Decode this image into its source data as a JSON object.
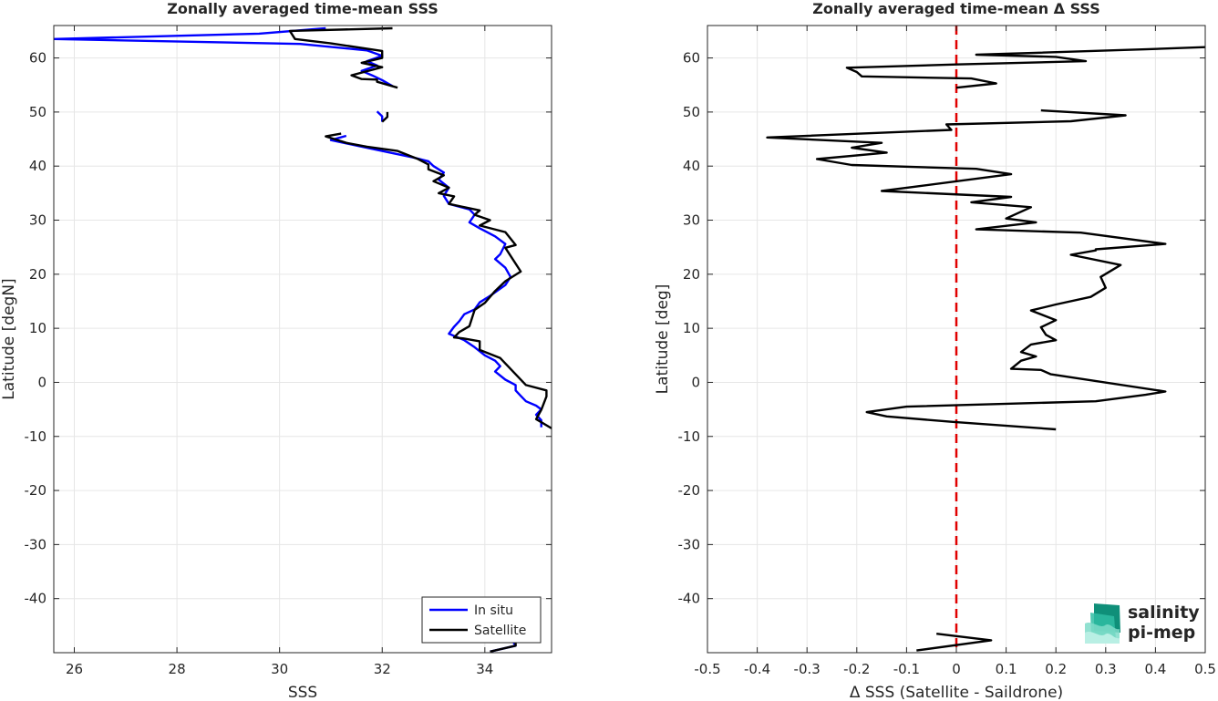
{
  "chart_data": [
    {
      "type": "line",
      "title": "Zonally averaged time-mean SSS",
      "xlabel": "SSS",
      "ylabel": "Latitude [degN]",
      "xlim": [
        25.6,
        35.3
      ],
      "ylim": [
        -50,
        66
      ],
      "x_ticks": [
        26,
        28,
        30,
        32,
        34
      ],
      "y_ticks": [
        -40,
        -30,
        -20,
        -10,
        0,
        10,
        20,
        30,
        40,
        50,
        60
      ],
      "grid": true,
      "legend": {
        "placement": "bottom-right",
        "entries": [
          "In situ",
          "Satellite"
        ]
      },
      "series": [
        {
          "name": "In situ",
          "color": "#0000ff",
          "segments": [
            [
              [
                30.9,
                65.5
              ],
              [
                29.6,
                64.5
              ],
              [
                25.6,
                63.5
              ],
              [
                30.4,
                62.6
              ],
              [
                31.7,
                61.4
              ],
              [
                32.0,
                60.4
              ],
              [
                31.7,
                59.4
              ],
              [
                31.9,
                58.6
              ],
              [
                31.6,
                57.6
              ],
              [
                31.8,
                56.8
              ],
              [
                32.0,
                55.9
              ],
              [
                32.2,
                54.8
              ]
            ],
            [
              [
                31.9,
                50.1
              ],
              [
                32.0,
                49.2
              ],
              [
                32.0,
                48.2
              ]
            ],
            [
              [
                31.3,
                45.6
              ],
              [
                31.0,
                44.8
              ],
              [
                31.5,
                43.8
              ],
              [
                32.1,
                42.6
              ],
              [
                32.6,
                41.6
              ],
              [
                32.9,
                40.9
              ],
              [
                33.0,
                40.0
              ],
              [
                33.2,
                38.8
              ],
              [
                33.1,
                37.5
              ],
              [
                33.3,
                36.0
              ],
              [
                33.2,
                34.5
              ],
              [
                33.3,
                33.0
              ],
              [
                33.7,
                32.0
              ],
              [
                33.8,
                31.0
              ],
              [
                33.7,
                29.6
              ],
              [
                33.9,
                28.5
              ],
              [
                34.2,
                27.0
              ],
              [
                34.4,
                25.6
              ],
              [
                34.3,
                23.7
              ],
              [
                34.2,
                22.8
              ],
              [
                34.4,
                21.2
              ],
              [
                34.5,
                19.5
              ],
              [
                34.4,
                18.0
              ],
              [
                34.1,
                16.0
              ],
              [
                33.9,
                14.8
              ],
              [
                33.8,
                13.5
              ],
              [
                33.6,
                12.6
              ],
              [
                33.5,
                11.3
              ],
              [
                33.4,
                10.3
              ],
              [
                33.3,
                9.0
              ],
              [
                33.6,
                7.8
              ],
              [
                33.8,
                6.5
              ],
              [
                34.0,
                5.0
              ],
              [
                34.2,
                4.0
              ],
              [
                34.3,
                3.0
              ],
              [
                34.2,
                2.0
              ],
              [
                34.4,
                0.5
              ],
              [
                34.6,
                -0.5
              ],
              [
                34.6,
                -1.5
              ],
              [
                34.7,
                -2.5
              ],
              [
                34.8,
                -3.5
              ],
              [
                35.0,
                -4.3
              ],
              [
                35.1,
                -5.0
              ],
              [
                35.0,
                -6.0
              ],
              [
                35.1,
                -7.0
              ],
              [
                35.1,
                -8.3
              ]
            ],
            [
              [
                34.5,
                -47.2
              ],
              [
                34.6,
                -48.7
              ],
              [
                34.1,
                -49.8
              ]
            ]
          ]
        },
        {
          "name": "Satellite",
          "color": "#000000",
          "segments": [
            [
              [
                32.2,
                65.5
              ],
              [
                30.2,
                65.0
              ],
              [
                30.3,
                63.5
              ],
              [
                31.0,
                62.7
              ],
              [
                32.0,
                61.3
              ],
              [
                32.0,
                60.0
              ],
              [
                31.6,
                59.1
              ],
              [
                32.0,
                58.3
              ],
              [
                31.4,
                56.8
              ],
              [
                31.6,
                56.1
              ],
              [
                31.9,
                56.0
              ],
              [
                31.9,
                55.6
              ],
              [
                32.3,
                54.5
              ]
            ],
            [
              [
                32.1,
                50.0
              ],
              [
                32.1,
                49.1
              ],
              [
                32.0,
                48.2
              ]
            ],
            [
              [
                31.2,
                46.0
              ],
              [
                30.9,
                45.5
              ],
              [
                31.3,
                44.3
              ],
              [
                31.7,
                43.6
              ],
              [
                32.3,
                42.8
              ],
              [
                32.7,
                41.3
              ],
              [
                32.9,
                40.3
              ],
              [
                32.9,
                39.4
              ],
              [
                33.2,
                38.3
              ],
              [
                33.0,
                37.2
              ],
              [
                33.3,
                36.0
              ],
              [
                33.1,
                35.0
              ],
              [
                33.4,
                34.4
              ],
              [
                33.3,
                33.0
              ],
              [
                33.9,
                31.8
              ],
              [
                33.8,
                31.0
              ],
              [
                34.1,
                30.0
              ],
              [
                33.9,
                29.0
              ],
              [
                34.4,
                27.8
              ],
              [
                34.6,
                25.4
              ],
              [
                34.4,
                24.9
              ],
              [
                34.7,
                20.5
              ],
              [
                34.4,
                18.7
              ],
              [
                34.2,
                16.9
              ],
              [
                34.0,
                14.7
              ],
              [
                33.8,
                13.4
              ],
              [
                33.7,
                10.4
              ],
              [
                33.5,
                9.3
              ],
              [
                33.4,
                8.3
              ],
              [
                33.6,
                8.1
              ],
              [
                33.9,
                7.6
              ],
              [
                33.9,
                6.0
              ],
              [
                34.3,
                4.5
              ],
              [
                34.4,
                3.5
              ],
              [
                34.8,
                -0.5
              ],
              [
                35.2,
                -1.5
              ],
              [
                35.2,
                -2.6
              ],
              [
                35.1,
                -5.1
              ],
              [
                35.0,
                -6.8
              ],
              [
                35.3,
                -8.5
              ]
            ],
            [
              [
                34.6,
                -47.4
              ],
              [
                34.6,
                -48.7
              ],
              [
                34.1,
                -49.8
              ]
            ]
          ]
        }
      ]
    },
    {
      "type": "line",
      "title": "Zonally averaged time-mean Δ SSS",
      "xlabel": "Δ SSS (Satellite - Saildrone)",
      "ylabel": "Latitude [deg]",
      "xlim": [
        -0.5,
        0.5
      ],
      "ylim": [
        -50,
        66
      ],
      "x_ticks": [
        -0.5,
        -0.4,
        -0.3,
        -0.2,
        -0.1,
        0,
        0.1,
        0.2,
        0.3,
        0.4,
        0.5
      ],
      "y_ticks": [
        -40,
        -30,
        -20,
        -10,
        0,
        10,
        20,
        30,
        40,
        50,
        60
      ],
      "grid": true,
      "reference_line": {
        "x": 0,
        "color": "#e00000",
        "style": "dashed"
      },
      "series": [
        {
          "color": "#000000",
          "segments": [
            [
              [
                0.5,
                62.0
              ],
              [
                0.38,
                61.6
              ],
              [
                0.04,
                60.6
              ],
              [
                0.2,
                60.2
              ],
              [
                0.26,
                59.4
              ],
              [
                0.0,
                58.8
              ],
              [
                -0.22,
                58.2
              ],
              [
                -0.2,
                57.4
              ],
              [
                -0.19,
                56.6
              ],
              [
                0.03,
                56.2
              ],
              [
                0.08,
                55.3
              ],
              [
                0.0,
                54.5
              ]
            ],
            [
              [
                0.17,
                50.3
              ],
              [
                0.34,
                49.4
              ],
              [
                0.23,
                48.3
              ],
              [
                -0.02,
                47.7
              ],
              [
                -0.01,
                46.7
              ],
              [
                -0.38,
                45.3
              ],
              [
                -0.15,
                44.3
              ],
              [
                -0.21,
                43.4
              ],
              [
                -0.14,
                42.5
              ],
              [
                -0.28,
                41.3
              ],
              [
                -0.21,
                40.2
              ],
              [
                0.04,
                39.5
              ],
              [
                0.11,
                38.5
              ],
              [
                -0.15,
                35.4
              ],
              [
                0.11,
                34.3
              ],
              [
                0.03,
                33.3
              ],
              [
                0.15,
                32.4
              ],
              [
                0.1,
                30.3
              ],
              [
                0.16,
                29.6
              ],
              [
                0.04,
                28.3
              ],
              [
                0.25,
                27.7
              ],
              [
                0.42,
                25.6
              ],
              [
                0.28,
                24.6
              ],
              [
                0.28,
                24.4
              ],
              [
                0.23,
                23.6
              ],
              [
                0.33,
                21.7
              ],
              [
                0.29,
                19.5
              ],
              [
                0.3,
                17.5
              ],
              [
                0.27,
                15.8
              ],
              [
                0.2,
                14.4
              ],
              [
                0.15,
                13.3
              ],
              [
                0.2,
                11.5
              ],
              [
                0.17,
                10.2
              ],
              [
                0.18,
                8.8
              ],
              [
                0.2,
                7.8
              ],
              [
                0.15,
                7.0
              ],
              [
                0.13,
                5.6
              ],
              [
                0.16,
                4.8
              ],
              [
                0.13,
                4.0
              ],
              [
                0.11,
                2.5
              ],
              [
                0.17,
                2.3
              ],
              [
                0.19,
                1.5
              ],
              [
                0.42,
                -1.7
              ],
              [
                0.38,
                -2.3
              ],
              [
                0.28,
                -3.5
              ],
              [
                -0.1,
                -4.5
              ],
              [
                -0.18,
                -5.5
              ],
              [
                -0.14,
                -6.3
              ],
              [
                -0.01,
                -7.3
              ],
              [
                0.2,
                -8.7
              ]
            ],
            [
              [
                -0.04,
                -46.5
              ],
              [
                0.07,
                -47.7
              ],
              [
                -0.08,
                -49.6
              ]
            ]
          ]
        }
      ]
    }
  ],
  "logo": {
    "line1": "salinity",
    "line2": "pi-mep",
    "color": "#17a38c"
  }
}
